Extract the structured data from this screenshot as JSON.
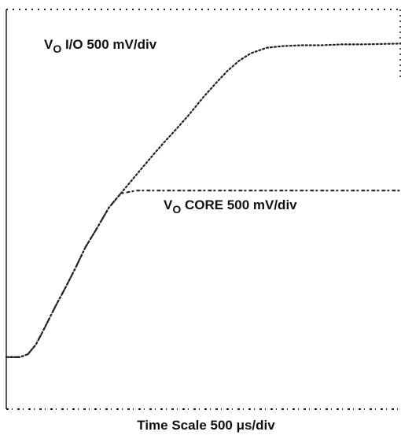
{
  "chart_data": {
    "type": "line",
    "xlabel": "Time Scale 500 μs/div",
    "grid": false,
    "series": [
      {
        "name_main": "V",
        "name_sub": "O",
        "name_rest": " I/O 500 mV/div",
        "color": "#222222",
        "x": [
          0,
          0.12,
          0.35,
          0.55,
          0.75,
          0.9,
          1.05,
          1.25,
          1.5,
          1.75,
          2.0,
          2.3,
          2.6,
          2.9,
          3.2,
          3.5,
          3.75,
          4.0,
          4.3,
          4.6,
          4.8,
          5.0,
          5.3,
          5.6,
          5.9,
          6.2,
          6.6,
          7.0,
          7.5,
          8.0,
          8.5,
          9.0,
          10.0
        ],
        "y": [
          0.25,
          0.25,
          0.25,
          0.32,
          0.55,
          0.82,
          1.1,
          1.48,
          1.92,
          2.38,
          2.88,
          3.35,
          3.84,
          4.18,
          4.52,
          4.86,
          5.14,
          5.41,
          5.72,
          6.04,
          6.27,
          6.5,
          6.82,
          7.12,
          7.37,
          7.55,
          7.68,
          7.72,
          7.74,
          7.74,
          7.76,
          7.76,
          7.78
        ]
      },
      {
        "name_main": "V",
        "name_sub": "O",
        "name_rest": " CORE 500 mV/div",
        "color": "#222222",
        "x": [
          0,
          0.12,
          0.35,
          0.55,
          0.75,
          0.9,
          1.05,
          1.25,
          1.5,
          1.75,
          2.0,
          2.3,
          2.6,
          2.9,
          3.3,
          4.0,
          5.0,
          6.0,
          7.0,
          8.0,
          9.0,
          10.0
        ],
        "y": [
          0.25,
          0.25,
          0.25,
          0.32,
          0.55,
          0.82,
          1.1,
          1.48,
          1.92,
          2.38,
          2.88,
          3.35,
          3.84,
          4.18,
          4.25,
          4.25,
          4.25,
          4.25,
          4.25,
          4.25,
          4.25,
          4.25
        ]
      }
    ],
    "xlim": [
      0,
      10
    ],
    "ylim": [
      -1,
      8.6
    ]
  }
}
